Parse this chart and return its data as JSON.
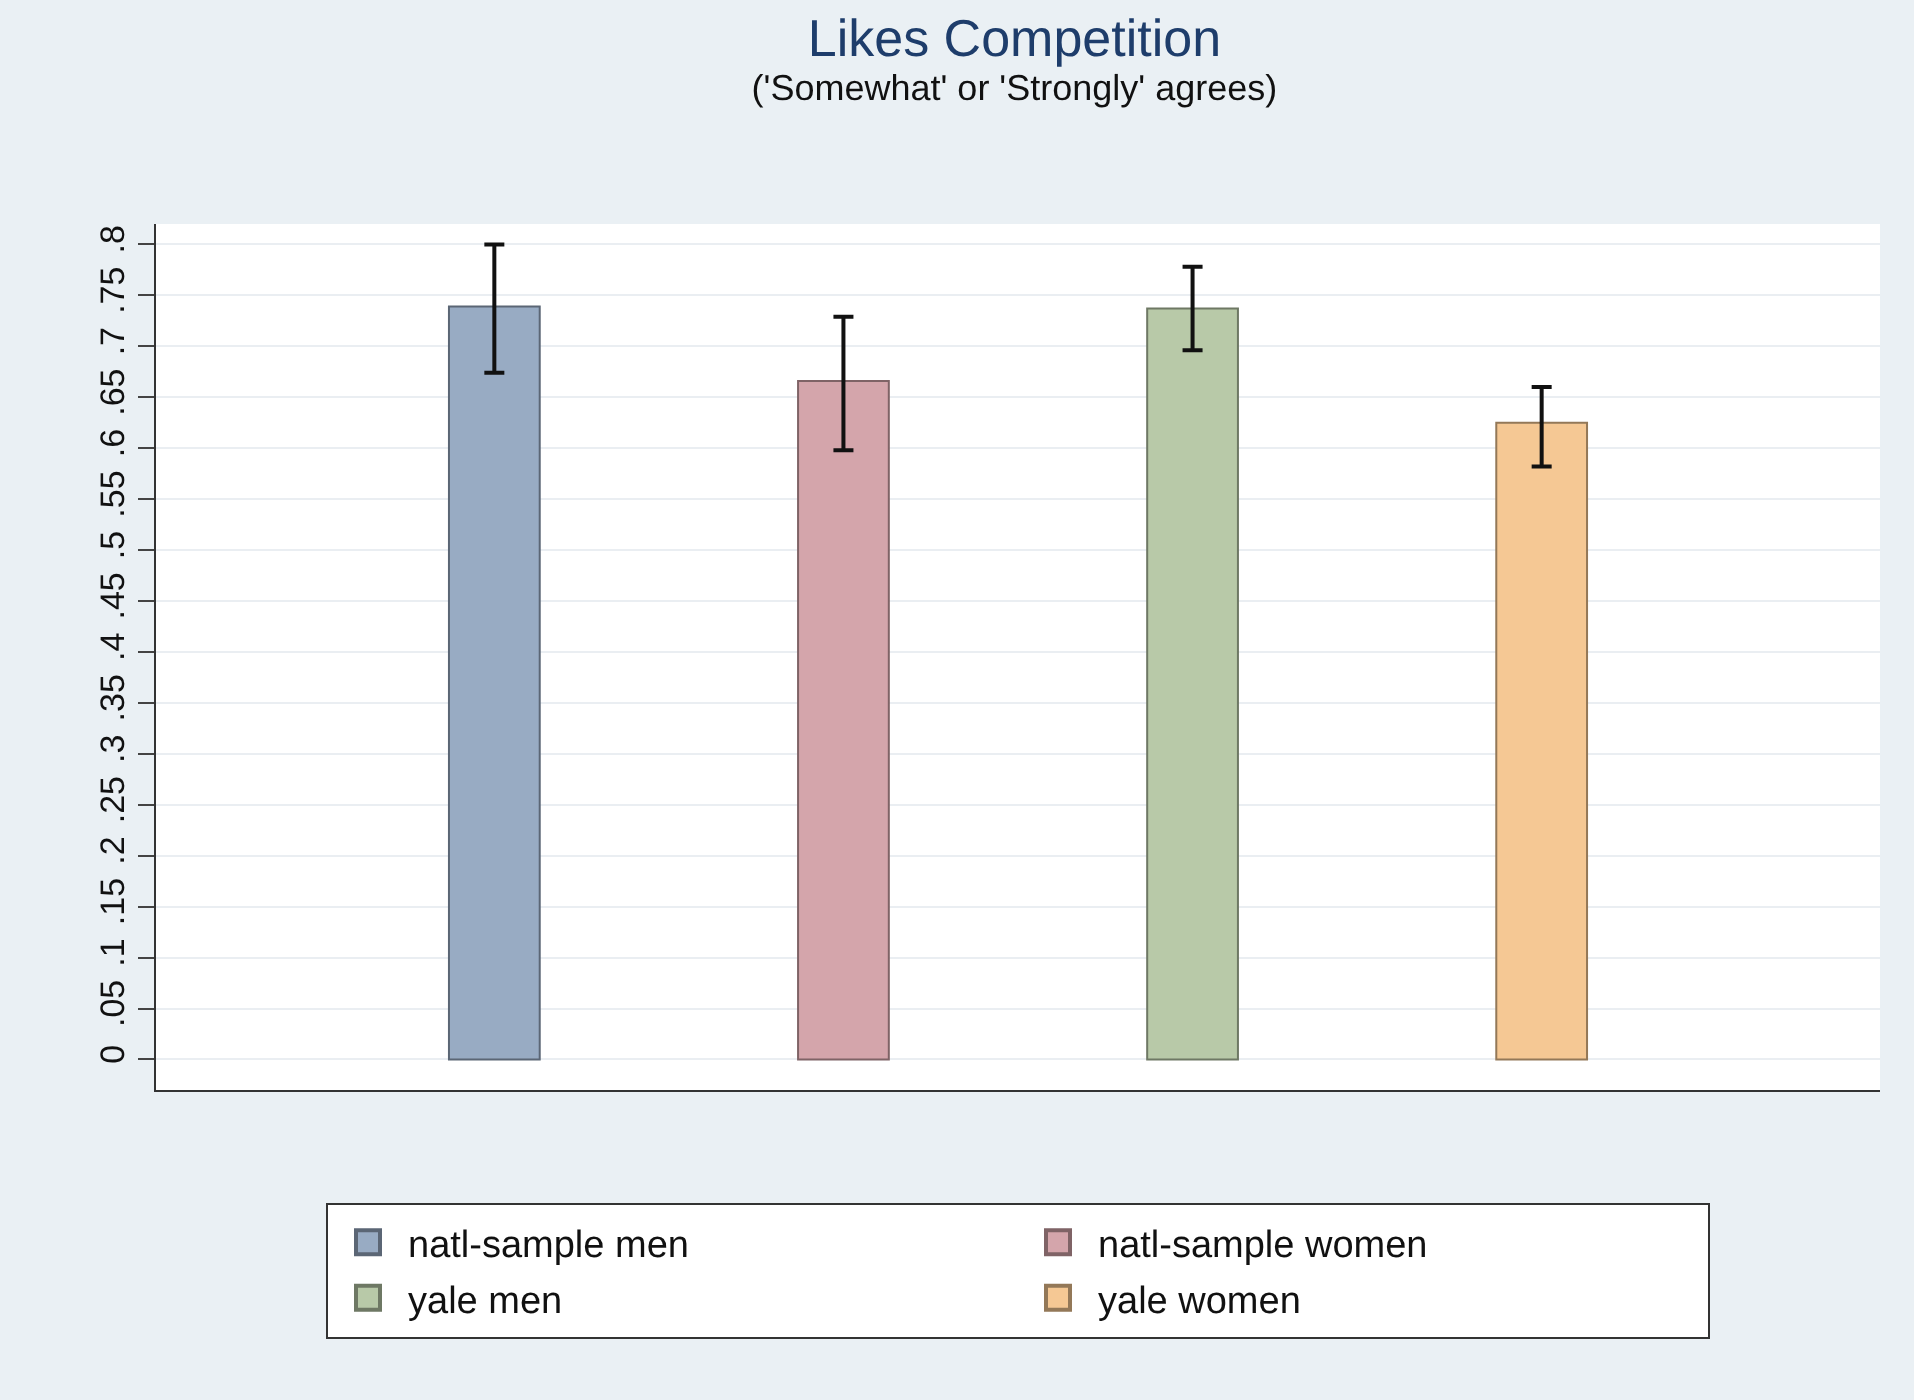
{
  "chart_data": {
    "type": "bar",
    "title": "Likes Competition",
    "subtitle": "('Somewhat' or 'Strongly' agrees)",
    "categories": [
      null
    ],
    "series": [
      {
        "name": "natl-sample men",
        "color": "#98abc3",
        "values": [
          0.739
        ],
        "errors": [
          [
            0.674,
            0.8
          ]
        ]
      },
      {
        "name": "natl-sample women",
        "color": "#d4a5ab",
        "values": [
          0.666
        ],
        "errors": [
          [
            0.598,
            0.729
          ]
        ]
      },
      {
        "name": "yale men",
        "color": "#b8c9a8",
        "values": [
          0.737
        ],
        "errors": [
          [
            0.696,
            0.778
          ]
        ]
      },
      {
        "name": "yale women",
        "color": "#f5c894",
        "values": [
          0.625
        ],
        "errors": [
          [
            0.582,
            0.66
          ]
        ]
      }
    ],
    "ylim": [
      -0.03,
      0.82
    ],
    "yticks": [
      {
        "value": 0,
        "label": "0"
      },
      {
        "value": 0.05,
        "label": ".05"
      },
      {
        "value": 0.1,
        "label": ".1"
      },
      {
        "value": 0.15,
        "label": ".15"
      },
      {
        "value": 0.2,
        "label": ".2"
      },
      {
        "value": 0.25,
        "label": ".25"
      },
      {
        "value": 0.3,
        "label": ".3"
      },
      {
        "value": 0.35,
        "label": ".35"
      },
      {
        "value": 0.4,
        "label": ".4"
      },
      {
        "value": 0.45,
        "label": ".45"
      },
      {
        "value": 0.5,
        "label": ".5"
      },
      {
        "value": 0.55,
        "label": ".55"
      },
      {
        "value": 0.6,
        "label": ".6"
      },
      {
        "value": 0.65,
        "label": ".65"
      },
      {
        "value": 0.7,
        "label": ".7"
      },
      {
        "value": 0.75,
        "label": ".75"
      },
      {
        "value": 0.8,
        "label": ".8"
      }
    ],
    "grid": "y",
    "legend": "bottom"
  }
}
